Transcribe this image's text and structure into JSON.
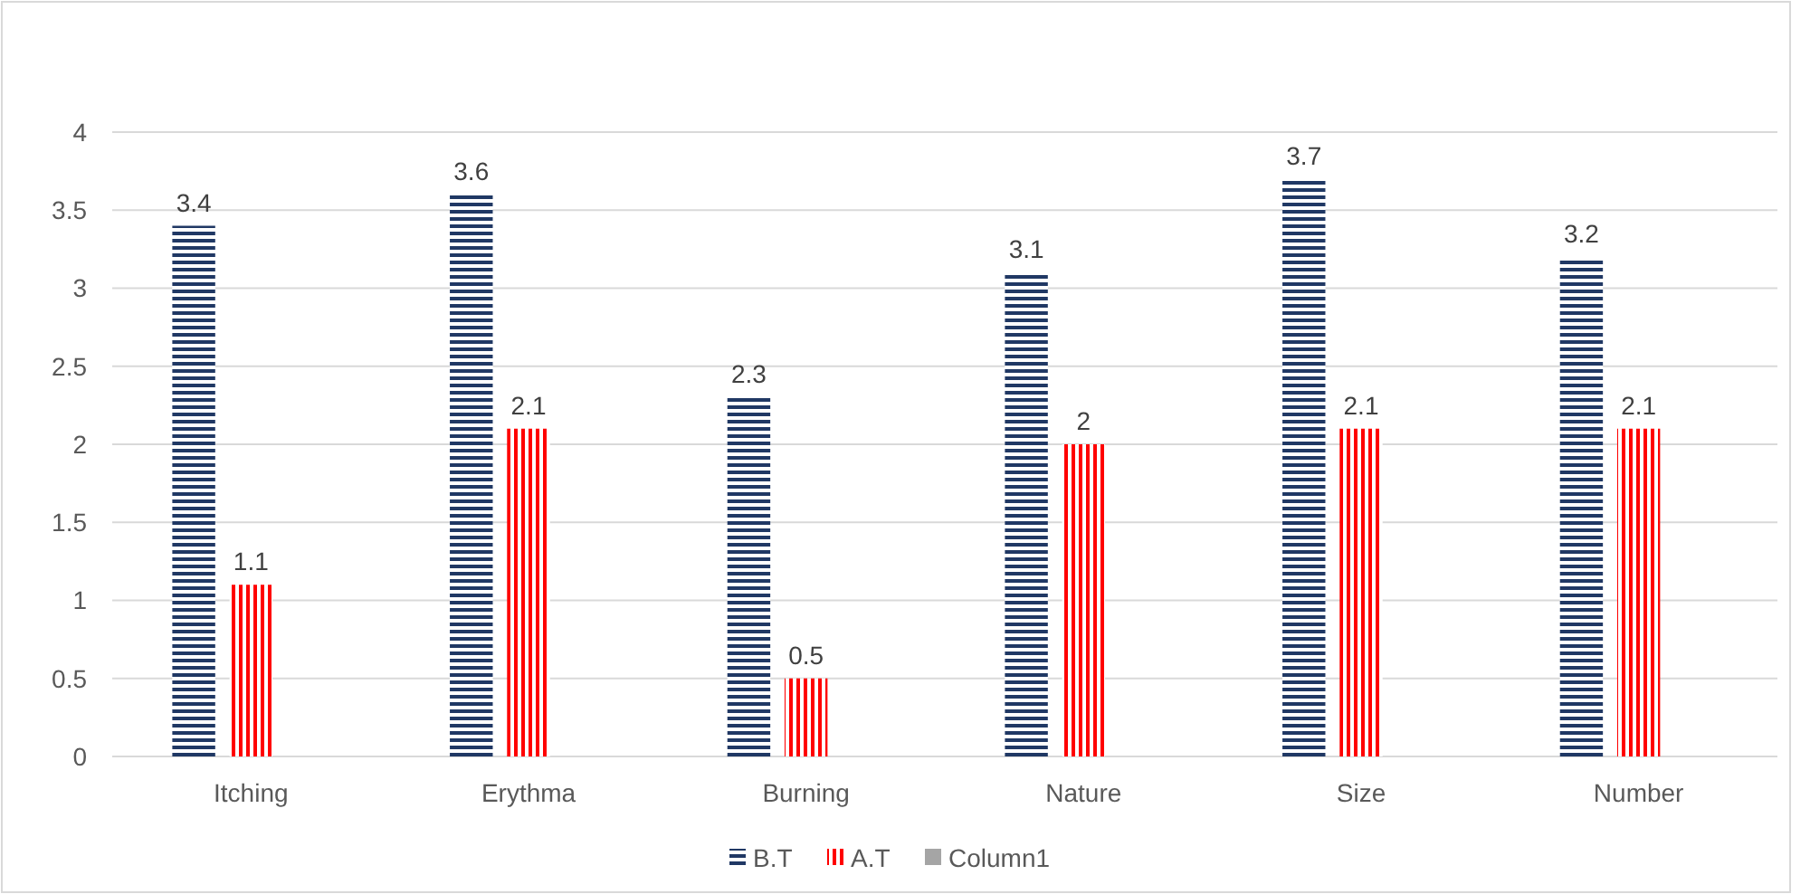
{
  "chart_data": {
    "type": "bar",
    "categories": [
      "Itching",
      "Erythma",
      "Burning",
      "Nature",
      "Size",
      "Number"
    ],
    "series": [
      {
        "name": "B.T",
        "color": "#203864",
        "values": [
          3.4,
          3.6,
          2.3,
          3.1,
          3.7,
          3.2
        ]
      },
      {
        "name": "A.T",
        "color": "#ff0000",
        "values": [
          1.1,
          2.1,
          0.5,
          2,
          2.1,
          2.1
        ]
      },
      {
        "name": "Column1",
        "color": "#a5a5a5",
        "values": [
          null,
          null,
          null,
          null,
          null,
          null
        ]
      }
    ],
    "ylim": [
      0,
      4
    ],
    "yticks": [
      0,
      0.5,
      1,
      1.5,
      2,
      2.5,
      3,
      3.5,
      4
    ],
    "grid": "y",
    "legend": "bottom",
    "data_labels": true
  }
}
